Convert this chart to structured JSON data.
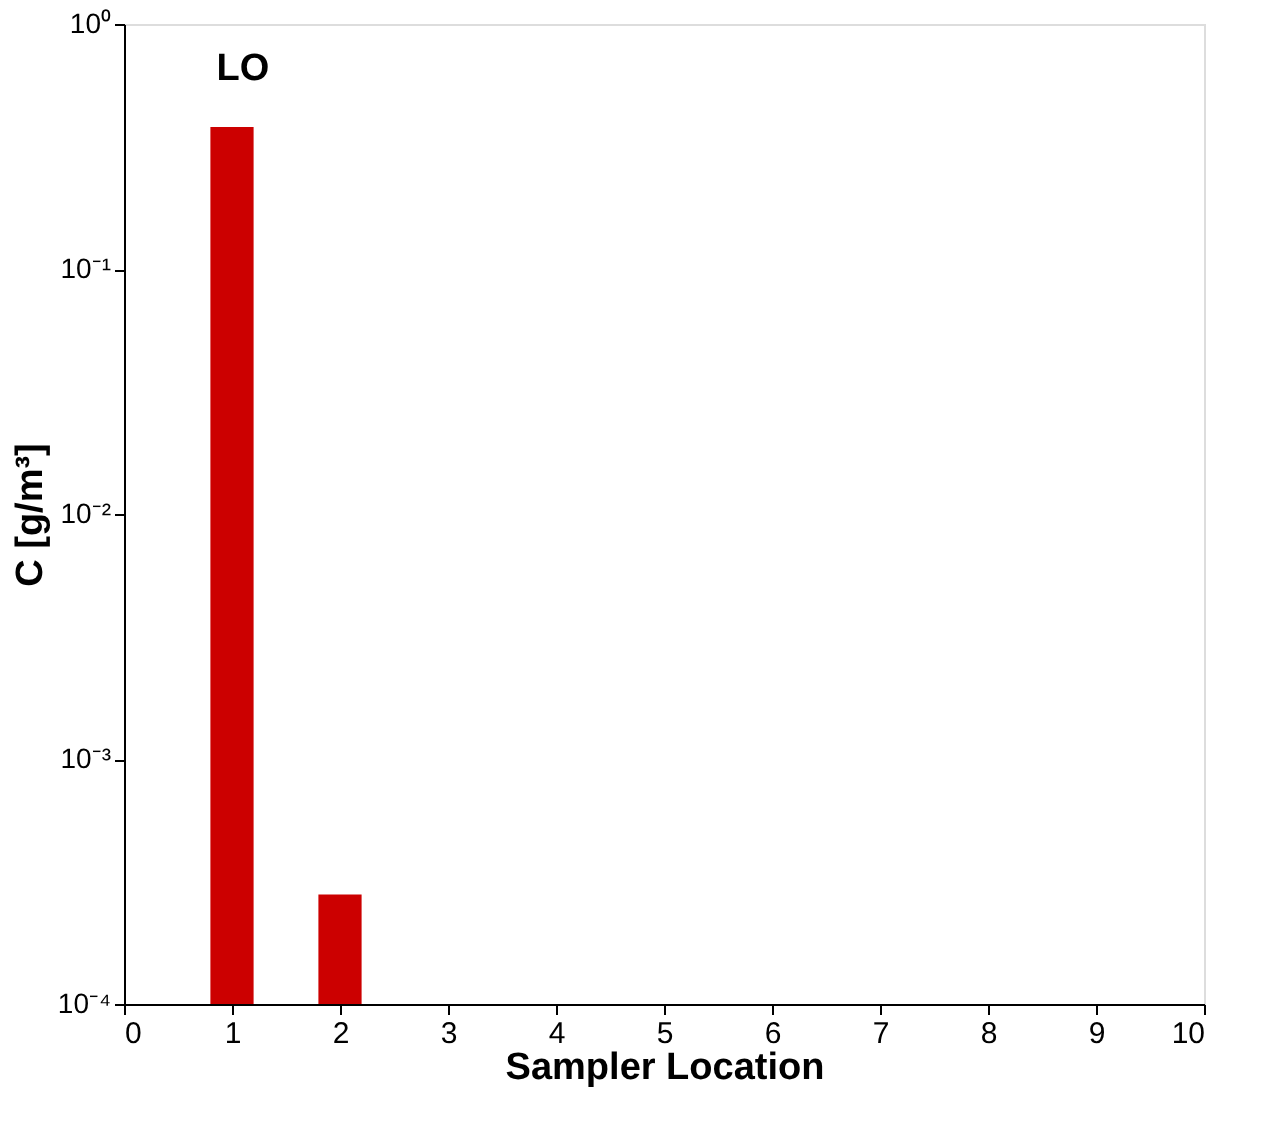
{
  "chart_data": {
    "type": "bar",
    "x": [
      1,
      2
    ],
    "values": [
      0.38,
      0.00028
    ],
    "color": "#cc0000",
    "xlabel": "Sampler Location",
    "ylabel": "C [g/m³]",
    "annotations": [
      "LO"
    ],
    "log": "y",
    "xlim": [
      0,
      10
    ],
    "xticks": [
      0,
      1,
      2,
      3,
      4,
      5,
      6,
      7,
      8,
      9,
      10
    ],
    "ylim": [
      0.0001,
      1
    ],
    "yticks": [
      {
        "value": 0.0001,
        "label": "10⁻⁴"
      },
      {
        "value": 0.001,
        "label": "10⁻³"
      },
      {
        "value": 0.01,
        "label": "10⁻²"
      },
      {
        "value": 0.1,
        "label": "10⁻¹"
      },
      {
        "value": 1,
        "label": "10⁰"
      }
    ],
    "grid": false
  }
}
